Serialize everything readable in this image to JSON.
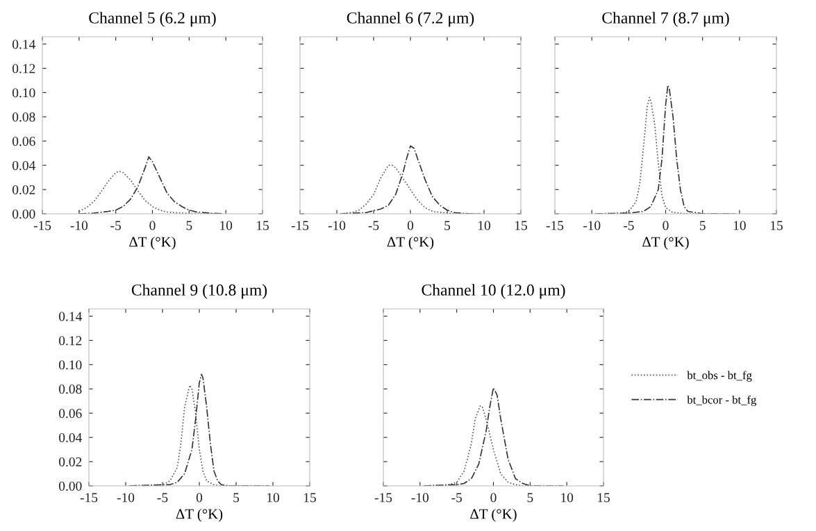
{
  "chart_data": [
    {
      "type": "line",
      "title": "Channel 5 (6.2 μm)",
      "xlabel": "ΔT (°K)",
      "xlim": [
        -15,
        15
      ],
      "xticks": [
        -15,
        -10,
        -5,
        0,
        5,
        10,
        15
      ],
      "ylim": [
        0,
        0.146
      ],
      "yticks": [
        {
          "value": 0,
          "label": "0.00"
        },
        {
          "value": 0.02,
          "label": "0.02"
        },
        {
          "value": 0.04,
          "label": "0.04"
        },
        {
          "value": 0.06,
          "label": "0.06"
        },
        {
          "value": 0.08,
          "label": "0.08"
        },
        {
          "value": 0.1,
          "label": "0.10"
        },
        {
          "value": 0.12,
          "label": "0.12"
        },
        {
          "value": 0.14,
          "label": "0.14"
        }
      ],
      "grid": false,
      "series": [
        {
          "color": "#555555",
          "line_style": "dotted",
          "x": [
            -10,
            -9,
            -8,
            -7,
            -6,
            -5,
            -4.5,
            -4,
            -3,
            -2,
            -1,
            0,
            1,
            2,
            3,
            5,
            7,
            9.5
          ],
          "values": [
            0.002,
            0.005,
            0.01,
            0.018,
            0.027,
            0.034,
            0.035,
            0.034,
            0.028,
            0.019,
            0.011,
            0.006,
            0.003,
            0.0015,
            0.001,
            0.0003,
            0.0001,
            0
          ]
        },
        {
          "color": "#333333",
          "line_style": "dashdot",
          "x": [
            -10,
            -8,
            -6,
            -5,
            -4,
            -3,
            -2,
            -1,
            -0.5,
            0,
            1,
            2,
            3,
            4,
            5,
            6,
            8,
            9.5
          ],
          "values": [
            0,
            0.0005,
            0.002,
            0.003,
            0.006,
            0.012,
            0.022,
            0.038,
            0.047,
            0.043,
            0.03,
            0.017,
            0.01,
            0.006,
            0.003,
            0.0015,
            0.0005,
            0
          ]
        }
      ]
    },
    {
      "type": "line",
      "title": "Channel 6 (7.2 μm)",
      "xlabel": "ΔT (°K)",
      "xlim": [
        -15,
        15
      ],
      "xticks": [
        -15,
        -10,
        -5,
        0,
        5,
        10,
        15
      ],
      "ylim": [
        0,
        0.146
      ],
      "tick_labels": "x",
      "grid": false,
      "series": [
        {
          "color": "#555555",
          "line_style": "dotted",
          "x": [
            -9.5,
            -8,
            -7,
            -6,
            -5,
            -4,
            -3,
            -2.5,
            -2,
            -1,
            0,
            1,
            2,
            3,
            5,
            7,
            9.5
          ],
          "values": [
            0,
            0.001,
            0.003,
            0.008,
            0.016,
            0.03,
            0.04,
            0.04,
            0.038,
            0.029,
            0.02,
            0.011,
            0.005,
            0.002,
            0.0005,
            0,
            0
          ]
        },
        {
          "color": "#333333",
          "line_style": "dashdot",
          "x": [
            -9.5,
            -6,
            -4,
            -3,
            -2,
            -1,
            -0.5,
            0,
            0.5,
            1,
            2,
            3,
            4,
            5,
            6,
            8,
            9.5
          ],
          "values": [
            0,
            0.001,
            0.004,
            0.007,
            0.016,
            0.034,
            0.046,
            0.056,
            0.054,
            0.045,
            0.028,
            0.014,
            0.007,
            0.003,
            0.001,
            0,
            0
          ]
        }
      ]
    },
    {
      "type": "line",
      "title": "Channel 7 (8.7 μm)",
      "xlabel": "ΔT (°K)",
      "xlim": [
        -15,
        15
      ],
      "xticks": [
        -15,
        -10,
        -5,
        0,
        5,
        10,
        15
      ],
      "ylim": [
        0,
        0.146
      ],
      "tick_labels": "x",
      "grid": false,
      "series": [
        {
          "color": "#555555",
          "line_style": "dotted",
          "x": [
            -9.5,
            -6,
            -5,
            -4,
            -3.5,
            -3,
            -2.5,
            -2.2,
            -2,
            -1.5,
            -1,
            -0.5,
            0,
            1,
            3,
            9.5
          ],
          "values": [
            0,
            0.0005,
            0.002,
            0.01,
            0.025,
            0.055,
            0.088,
            0.096,
            0.093,
            0.075,
            0.042,
            0.015,
            0.005,
            0.001,
            0,
            0
          ]
        },
        {
          "color": "#333333",
          "line_style": "dashdot",
          "x": [
            -9.5,
            -5,
            -3,
            -2,
            -1,
            -0.5,
            0,
            0.3,
            0.5,
            1,
            1.5,
            2,
            2.5,
            3,
            5,
            9.5
          ],
          "values": [
            0,
            0.0005,
            0.002,
            0.006,
            0.02,
            0.045,
            0.09,
            0.106,
            0.103,
            0.08,
            0.045,
            0.02,
            0.006,
            0.002,
            0,
            0
          ]
        }
      ]
    },
    {
      "type": "line",
      "title": "Channel 9 (10.8 μm)",
      "xlabel": "ΔT (°K)",
      "xlim": [
        -15,
        15
      ],
      "xticks": [
        -15,
        -10,
        -5,
        0,
        5,
        10,
        15
      ],
      "ylim": [
        0,
        0.146
      ],
      "yticks": [
        {
          "value": 0,
          "label": "0.00"
        },
        {
          "value": 0.02,
          "label": "0.02"
        },
        {
          "value": 0.04,
          "label": "0.04"
        },
        {
          "value": 0.06,
          "label": "0.06"
        },
        {
          "value": 0.08,
          "label": "0.08"
        },
        {
          "value": 0.1,
          "label": "0.10"
        },
        {
          "value": 0.12,
          "label": "0.12"
        },
        {
          "value": 0.14,
          "label": "0.14"
        }
      ],
      "grid": false,
      "series": [
        {
          "color": "#555555",
          "line_style": "dotted",
          "x": [
            -9.5,
            -5,
            -4,
            -3,
            -2.5,
            -2,
            -1.3,
            -1,
            -0.5,
            0,
            0.5,
            1,
            2,
            3,
            9.5
          ],
          "values": [
            0,
            0.001,
            0.004,
            0.015,
            0.035,
            0.065,
            0.083,
            0.08,
            0.06,
            0.03,
            0.012,
            0.004,
            0.001,
            0,
            0
          ]
        },
        {
          "color": "#333333",
          "line_style": "dashdot",
          "x": [
            -9.5,
            -4,
            -3,
            -2,
            -1,
            -0.5,
            0,
            0.3,
            0.5,
            1,
            1.5,
            2,
            2.5,
            3,
            4,
            9.5
          ],
          "values": [
            0,
            0.001,
            0.003,
            0.01,
            0.03,
            0.055,
            0.085,
            0.092,
            0.089,
            0.065,
            0.035,
            0.012,
            0.004,
            0.001,
            0,
            0
          ]
        }
      ]
    },
    {
      "type": "line",
      "title": "Channel 10 (12.0 μm)",
      "xlabel": "ΔT (°K)",
      "xlim": [
        -15,
        15
      ],
      "xticks": [
        -15,
        -10,
        -5,
        0,
        5,
        10,
        15
      ],
      "ylim": [
        0,
        0.146
      ],
      "tick_labels": "x",
      "grid": false,
      "legend": "right",
      "series": [
        {
          "name": "bt_obs - bt_fg",
          "color": "#555555",
          "line_style": "dotted",
          "x": [
            -9.5,
            -6,
            -5,
            -4,
            -3,
            -2.5,
            -1.8,
            -1.5,
            -1,
            0,
            1,
            2,
            3,
            4,
            9.5
          ],
          "values": [
            0,
            0.001,
            0.003,
            0.012,
            0.035,
            0.055,
            0.066,
            0.065,
            0.055,
            0.03,
            0.01,
            0.003,
            0.001,
            0,
            0
          ]
        },
        {
          "name": "bt_bcor - bt_fg",
          "color": "#333333",
          "line_style": "dashdot",
          "x": [
            -9.5,
            -5,
            -4,
            -3,
            -2,
            -1,
            -0.5,
            0,
            0.5,
            1,
            2,
            3,
            4,
            5,
            9.5
          ],
          "values": [
            0,
            0.001,
            0.002,
            0.006,
            0.018,
            0.045,
            0.065,
            0.081,
            0.075,
            0.055,
            0.022,
            0.006,
            0.002,
            0,
            0
          ]
        }
      ]
    }
  ]
}
